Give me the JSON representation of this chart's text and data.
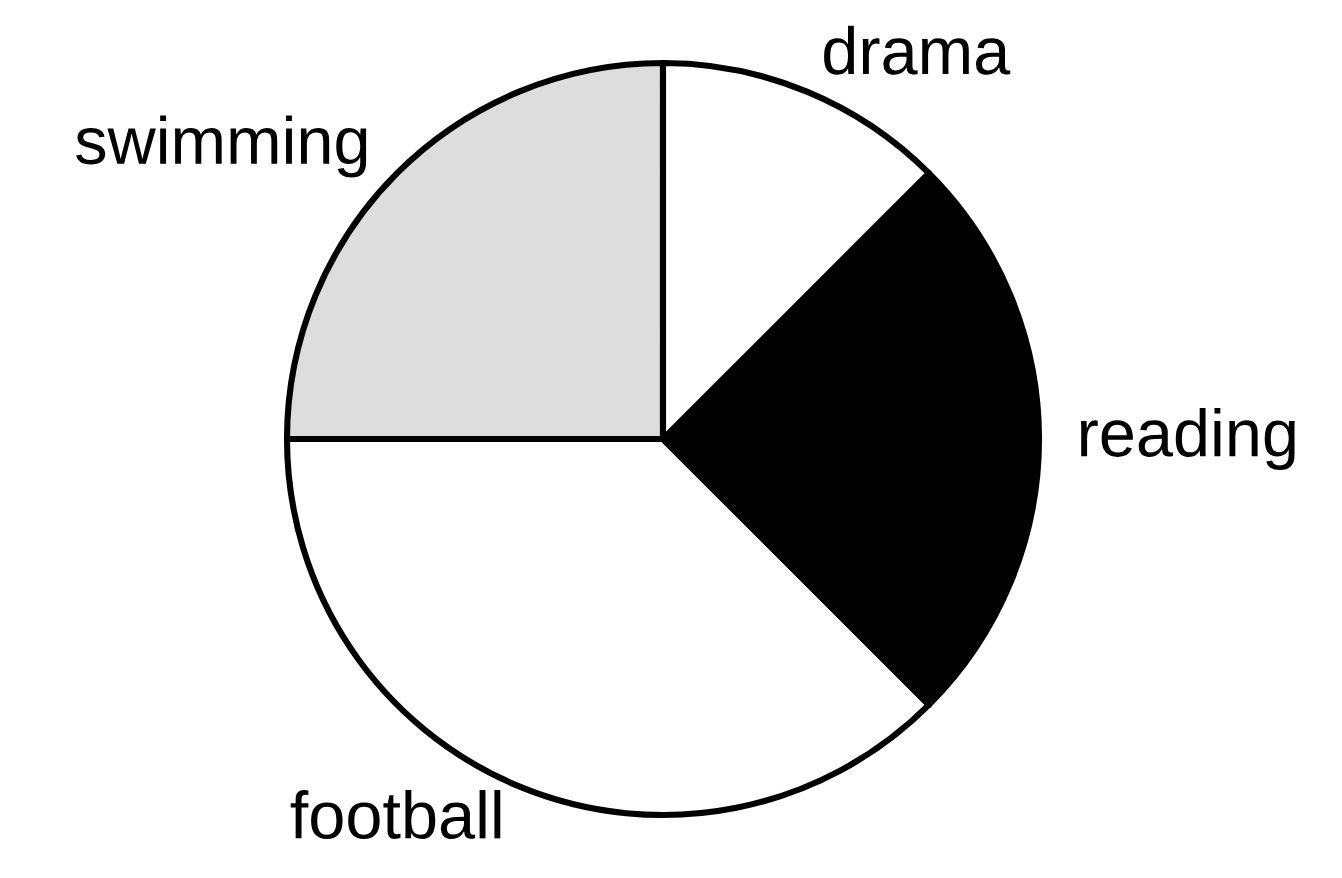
{
  "chart_data": {
    "type": "pie",
    "categories": [
      "swimming",
      "football",
      "reading",
      "drama"
    ],
    "values": [
      25,
      37.5,
      25,
      12.5
    ],
    "colors": [
      "#dddddd",
      "#ffffff",
      "#000000",
      "#ffffff"
    ]
  }
}
